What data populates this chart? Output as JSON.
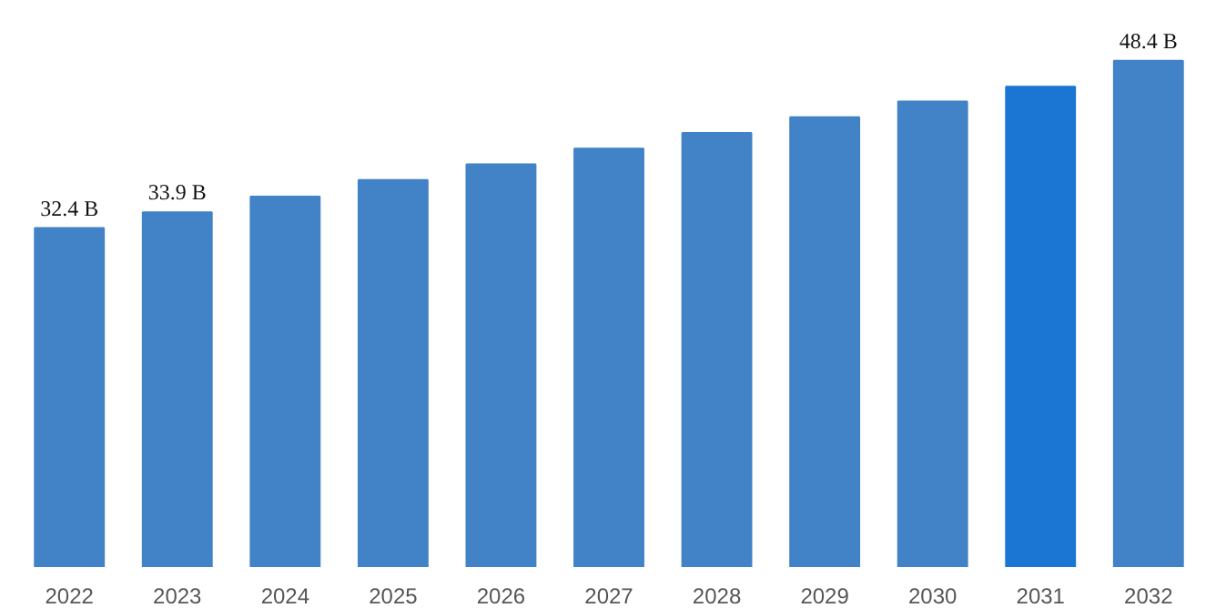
{
  "chart_data": {
    "type": "bar",
    "categories": [
      "2022",
      "2023",
      "2024",
      "2025",
      "2026",
      "2027",
      "2028",
      "2029",
      "2030",
      "2031",
      "2032"
    ],
    "values": [
      32.4,
      33.9,
      35.4,
      37.0,
      38.5,
      40.0,
      41.5,
      43.0,
      44.5,
      45.9,
      48.4
    ],
    "value_labels": [
      "32.4 B",
      "33.9 B",
      null,
      null,
      null,
      null,
      null,
      null,
      null,
      null,
      "48.4 B"
    ],
    "colors": [
      "#4282c6",
      "#4282c6",
      "#4282c6",
      "#4282c6",
      "#4282c6",
      "#4282c6",
      "#4282c6",
      "#4282c6",
      "#4282c6",
      "#1a76d2",
      "#4282c6"
    ],
    "grid": false
  }
}
